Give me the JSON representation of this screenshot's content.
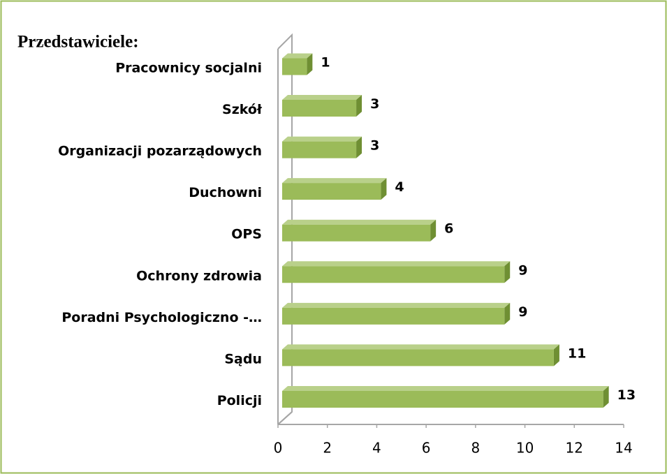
{
  "chart_data": {
    "type": "bar",
    "orientation": "horizontal",
    "title": "Przedstawiciele:",
    "categories": [
      "Pracownicy socjalni",
      "Szkół",
      "Organizacji pozarządowych",
      "Duchowni",
      "OPS",
      "Ochrony zdrowia",
      "Poradni Psychologiczno -…",
      "Sądu",
      "Policji"
    ],
    "values": [
      1,
      3,
      3,
      4,
      6,
      9,
      9,
      11,
      13
    ],
    "color": "#9bbb59",
    "xlim": [
      0,
      14
    ],
    "xticks": [
      0,
      2,
      4,
      6,
      8,
      10,
      12,
      14
    ],
    "grid": false
  }
}
